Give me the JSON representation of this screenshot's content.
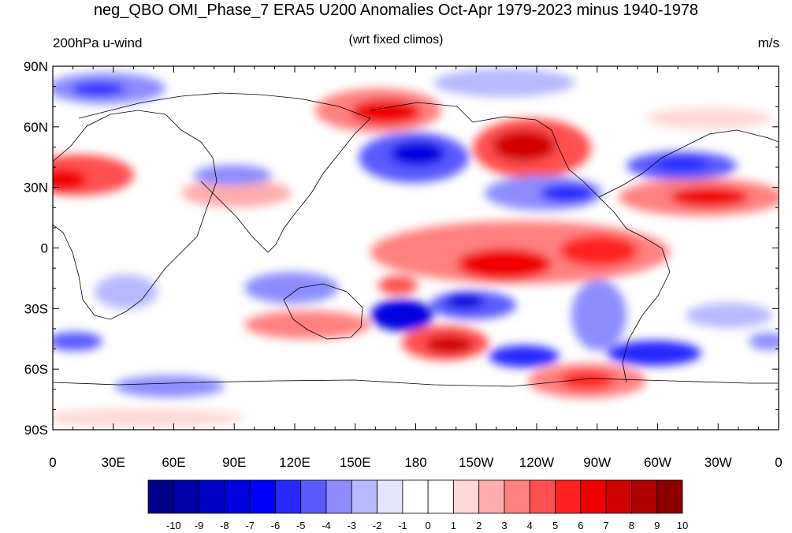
{
  "title": "neg_QBO OMI_Phase_7 ERA5 U200 Anomalies Oct-Apr 1979-2023 minus 1940-1978",
  "left_label": "200hPa u-wind",
  "center_label": "(wrt fixed climos)",
  "right_label": "m/s",
  "y_ticks": [
    "90N",
    "60N",
    "30N",
    "0",
    "30S",
    "60S",
    "90S"
  ],
  "x_ticks": [
    "0",
    "30E",
    "60E",
    "90E",
    "120E",
    "150E",
    "180",
    "150W",
    "120W",
    "90W",
    "60W",
    "30W",
    "0"
  ],
  "colorbar": {
    "labels": [
      "-10",
      "-9",
      "-8",
      "-7",
      "-6",
      "-5",
      "-4",
      "-3",
      "-2",
      "-1",
      "0",
      "1",
      "2",
      "3",
      "4",
      "5",
      "6",
      "7",
      "8",
      "9",
      "10"
    ],
    "colors": [
      "#00008b",
      "#0000a8",
      "#0000c8",
      "#0000e0",
      "#0000ff",
      "#2828ff",
      "#5a5aff",
      "#8c8cff",
      "#b8b8ff",
      "#e4e4fa",
      "#ffffff",
      "#ffffff",
      "#ffd8d8",
      "#ffacac",
      "#ff8080",
      "#ff5050",
      "#ff2020",
      "#f00000",
      "#d20000",
      "#b00000",
      "#8b0000"
    ]
  },
  "map": {
    "projection": "cylindrical equidistant",
    "lon_range": [
      0,
      360
    ],
    "lat_range": [
      -90,
      90
    ]
  }
}
